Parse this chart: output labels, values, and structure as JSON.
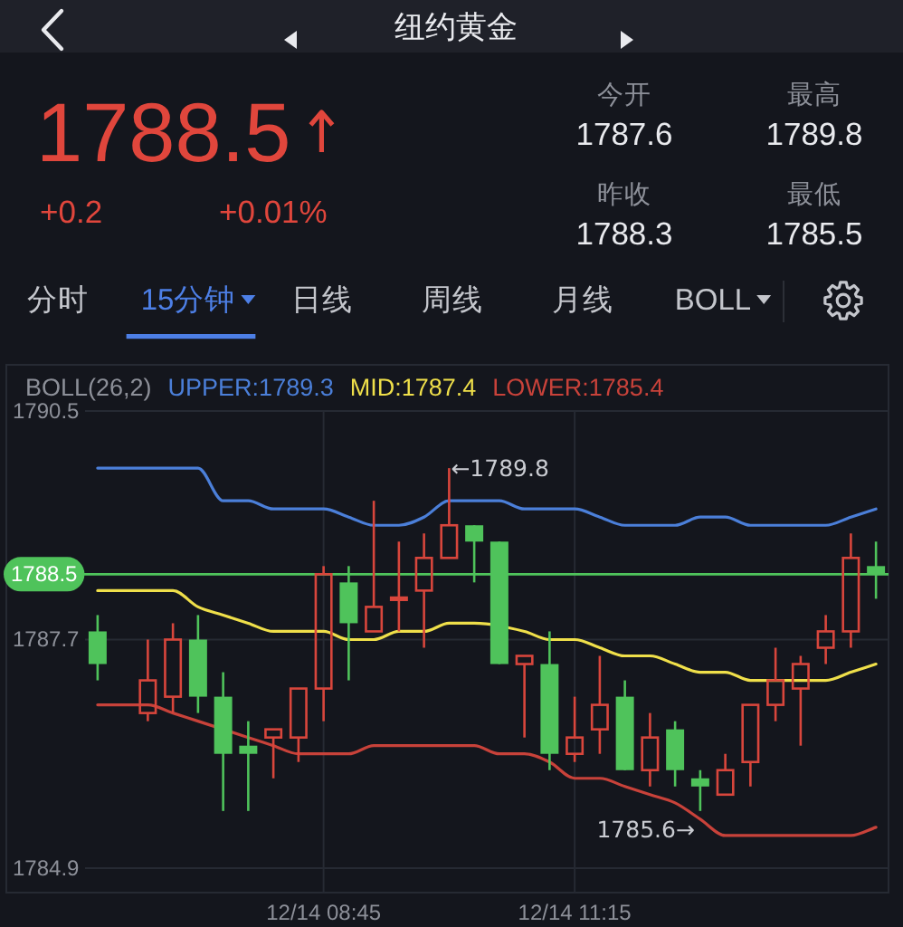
{
  "chart_data": [
    {
      "type": "other",
      "title": "纽约黄金",
      "annotations": [
        "1788.5",
        "+0.2",
        "+0.01%",
        "分时",
        "15分钟",
        "日线",
        "周线",
        "月线",
        "BOLL"
      ],
      "categories": [
        "今开",
        "最高",
        "昨收",
        "最低"
      ],
      "values": [
        1787.6,
        1789.8,
        1788.3,
        1785.5
      ],
      "data_labels": true
    },
    {
      "type": "candlestick",
      "legend_title": "BOLL(26,2)",
      "legend": "top left",
      "grid": true,
      "categories": [
        null,
        null,
        null,
        null,
        null,
        null,
        null,
        null,
        null,
        "12/14 08:45",
        null,
        null,
        null,
        null,
        null,
        null,
        null,
        null,
        null,
        "12/14 11:15",
        null,
        null,
        null,
        null,
        null,
        null,
        null,
        null,
        null,
        null,
        null,
        null
      ],
      "ohlc": [
        [
          1787.8,
          1788.0,
          1787.2,
          1787.4
        ],
        null,
        [
          1786.8,
          1787.7,
          1786.7,
          1787.2
        ],
        [
          1787.0,
          1787.9,
          1786.8,
          1787.7
        ],
        [
          1787.7,
          1788.0,
          1786.8,
          1787.0
        ],
        [
          1787.0,
          1787.3,
          1785.6,
          1786.3
        ],
        [
          1786.4,
          1786.7,
          1785.6,
          1786.3
        ],
        [
          1786.5,
          1786.6,
          1786.0,
          1786.6
        ],
        [
          1786.5,
          1787.1,
          1786.2,
          1787.1
        ],
        [
          1787.1,
          1788.6,
          1786.7,
          1788.5
        ],
        [
          1788.4,
          1788.6,
          1787.2,
          1787.9
        ],
        [
          1787.8,
          1789.4,
          1787.8,
          1788.1
        ],
        [
          1788.2,
          1788.9,
          1787.8,
          1788.2
        ],
        [
          1788.3,
          1789.0,
          1787.6,
          1788.7
        ],
        [
          1788.7,
          1789.8,
          1788.7,
          1789.1
        ],
        [
          1789.1,
          1789.1,
          1788.4,
          1788.9
        ],
        [
          1788.9,
          1788.9,
          1787.4,
          1787.4
        ],
        [
          1787.4,
          1787.5,
          1786.5,
          1787.5
        ],
        [
          1787.4,
          1787.8,
          1786.1,
          1786.3
        ],
        [
          1786.3,
          1787.0,
          1786.2,
          1786.5
        ],
        [
          1786.6,
          1787.5,
          1786.3,
          1786.9
        ],
        [
          1787.0,
          1787.2,
          1786.1,
          1786.1
        ],
        [
          1786.1,
          1786.8,
          1785.9,
          1786.5
        ],
        [
          1786.6,
          1786.7,
          1785.9,
          1786.1
        ],
        [
          1786.0,
          1786.1,
          1785.6,
          1785.9
        ],
        [
          1785.8,
          1786.3,
          1785.8,
          1786.1
        ],
        [
          1786.2,
          1786.9,
          1785.9,
          1786.9
        ],
        [
          1786.9,
          1787.6,
          1786.7,
          1787.2
        ],
        [
          1787.1,
          1787.5,
          1786.4,
          1787.4
        ],
        [
          1787.6,
          1788.0,
          1787.4,
          1787.8
        ],
        [
          1787.8,
          1789.0,
          1787.6,
          1788.7
        ],
        [
          1788.6,
          1788.9,
          1788.2,
          1788.5
        ]
      ],
      "colors": [
        "#4fc35b",
        null,
        "#d8463c",
        "#d8463c",
        "#4fc35b",
        "#4fc35b",
        "#4fc35b",
        "#d8463c",
        "#d8463c",
        "#d8463c",
        "#4fc35b",
        "#d8463c",
        "#d8463c",
        "#d8463c",
        "#d8463c",
        "#4fc35b",
        "#4fc35b",
        "#d8463c",
        "#4fc35b",
        "#d8463c",
        "#d8463c",
        "#4fc35b",
        "#d8463c",
        "#4fc35b",
        "#4fc35b",
        "#d8463c",
        "#d8463c",
        "#d8463c",
        "#d8463c",
        "#d8463c",
        "#d8463c",
        "#4fc35b"
      ],
      "series": [
        {
          "name": "UPPER:1789.3",
          "type": "line",
          "color": "#4b7fd9",
          "values": [
            1789.8,
            1789.8,
            1789.8,
            1789.8,
            1789.8,
            1789.4,
            1789.4,
            1789.3,
            1789.3,
            1789.3,
            1789.2,
            1789.1,
            1789.1,
            1789.2,
            1789.4,
            1789.4,
            1789.4,
            1789.3,
            1789.3,
            1789.3,
            1789.2,
            1789.1,
            1789.1,
            1789.1,
            1789.2,
            1789.2,
            1789.1,
            1789.1,
            1789.1,
            1789.1,
            1789.2,
            1789.3
          ]
        },
        {
          "name": "MID:1787.4",
          "type": "line",
          "color": "#efdf4a",
          "values": [
            1788.3,
            1788.3,
            1788.3,
            1788.3,
            1788.1,
            1788.0,
            1787.9,
            1787.8,
            1787.8,
            1787.8,
            1787.7,
            1787.7,
            1787.8,
            1787.8,
            1787.9,
            1787.9,
            null,
            1787.8,
            1787.7,
            1787.7,
            1787.6,
            1787.5,
            1787.5,
            1787.4,
            1787.3,
            1787.3,
            1787.2,
            1787.2,
            1787.2,
            1787.2,
            1787.3,
            1787.4
          ]
        },
        {
          "name": "LOWER:1785.4",
          "type": "line",
          "color": "#c8423a",
          "values": [
            1786.9,
            1786.9,
            1786.9,
            1786.8,
            1786.7,
            null,
            1786.5,
            1786.4,
            1786.3,
            1786.3,
            1786.3,
            1786.4,
            1786.4,
            1786.4,
            1786.4,
            1786.4,
            1786.3,
            1786.3,
            1786.2,
            1786.0,
            1786.0,
            1785.9,
            1785.8,
            1785.7,
            1785.5,
            1785.3,
            1785.3,
            1785.3,
            1785.3,
            1785.3,
            1785.3,
            1785.4
          ]
        }
      ],
      "ylim": [
        1784.6,
        1790.5
      ],
      "yticks": [
        1790.5,
        1787.7,
        1784.9
      ],
      "ref_lines": [
        {
          "axis": "y",
          "value": 1788.5,
          "label": "1788.5",
          "color": "#4fc35b"
        }
      ],
      "annotations": [
        "←1789.8",
        "1785.6→"
      ]
    }
  ]
}
